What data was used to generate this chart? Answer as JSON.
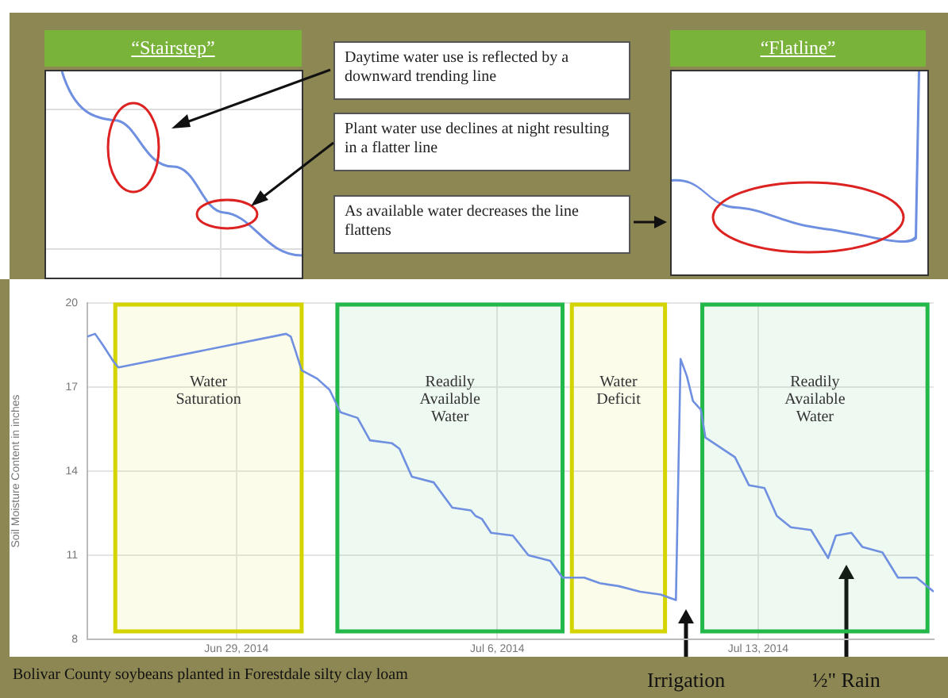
{
  "chart_data": {
    "type": "line",
    "ylabel": "Soil Moisture Content in inches",
    "x": [
      "2014-06-25T00:00",
      "2014-06-25T05:00",
      "2014-06-25T10:00",
      "2014-06-25T17:00",
      "2014-06-25T20:00",
      "2014-06-30T08:00",
      "2014-06-30T11:00",
      "2014-06-30T14:00",
      "2014-06-30T18:00",
      "2014-07-01T04:00",
      "2014-07-01T12:00",
      "2014-07-01T19:00",
      "2014-07-02T06:00",
      "2014-07-02T14:00",
      "2014-07-03T04:00",
      "2014-07-03T09:00",
      "2014-07-03T17:00",
      "2014-07-04T07:00",
      "2014-07-04T19:00",
      "2014-07-05T07:00",
      "2014-07-05T10:00",
      "2014-07-05T14:00",
      "2014-07-05T20:00",
      "2014-07-06T10:00",
      "2014-07-06T20:00",
      "2014-07-07T10:00",
      "2014-07-07T18:00",
      "2014-07-08T08:00",
      "2014-07-08T18:00",
      "2014-07-09T06:00",
      "2014-07-09T20:00",
      "2014-07-10T09:00",
      "2014-07-10T19:00",
      "2014-07-10T22:00",
      "2014-07-11T02:00",
      "2014-07-11T06:00",
      "2014-07-11T11:00",
      "2014-07-11T14:00",
      "2014-07-12T09:00",
      "2014-07-12T18:00",
      "2014-07-13T04:00",
      "2014-07-13T12:00",
      "2014-07-13T21:00",
      "2014-07-14T10:00",
      "2014-07-14T21:00",
      "2014-07-15T02:00",
      "2014-07-15T12:00",
      "2014-07-15T19:00",
      "2014-07-16T08:00",
      "2014-07-16T18:00",
      "2014-07-17T06:00",
      "2014-07-17T17:00"
    ],
    "series": [
      {
        "color": "#6f8fe0",
        "values": [
          18.8,
          18.9,
          18.5,
          17.9,
          17.7,
          18.9,
          18.8,
          18.3,
          17.6,
          17.3,
          16.9,
          16.1,
          15.9,
          15.1,
          15.0,
          14.8,
          13.8,
          13.6,
          12.7,
          12.6,
          12.4,
          12.3,
          11.8,
          11.7,
          11.0,
          10.8,
          10.2,
          10.2,
          10.0,
          9.9,
          9.7,
          9.6,
          9.4,
          18.0,
          17.4,
          16.5,
          16.2,
          15.2,
          14.5,
          13.5,
          13.4,
          12.4,
          12.0,
          11.9,
          10.9,
          11.7,
          11.8,
          11.3,
          11.1,
          10.2,
          10.2,
          9.7
        ]
      }
    ],
    "xlim": [
      "2014-06-25T00:00",
      "2014-07-17T17:00"
    ],
    "xticks": [
      {
        "value": "2014-06-29",
        "label": "Jun 29, 2014"
      },
      {
        "value": "2014-07-06",
        "label": "Jul 6, 2014"
      },
      {
        "value": "2014-07-13",
        "label": "Jul 13, 2014"
      }
    ],
    "ylim": [
      8,
      20
    ],
    "yticks": [
      8,
      11,
      14,
      17,
      20
    ],
    "grid": true,
    "bands": [
      {
        "axis": "x",
        "from": "2014-06-25T18:00",
        "to": "2014-06-30T18:00",
        "label": "Water Saturation",
        "color": "#d4d400"
      },
      {
        "axis": "x",
        "from": "2014-07-01T17:00",
        "to": "2014-07-07T18:00",
        "label": "Readily Available Water",
        "color": "#22b84a"
      },
      {
        "axis": "x",
        "from": "2014-07-08T00:00",
        "to": "2014-07-10T12:00",
        "label": "Water Deficit",
        "color": "#d4d400"
      },
      {
        "axis": "x",
        "from": "2014-07-11T12:00",
        "to": "2014-07-17T13:00",
        "label": "Readily Available Water",
        "color": "#22b84a"
      }
    ],
    "annotations": [
      "“Stairstep”",
      "“Flatline”",
      "Daytime water use is reflected by  a downward trending line",
      "Plant water use declines at night resulting in a flatter line",
      "As available water decreases  the line flattens",
      "Bolivar County soybeans planted in Forestdale silty clay loam",
      "Irrigation",
      "½\" Rain"
    ]
  }
}
